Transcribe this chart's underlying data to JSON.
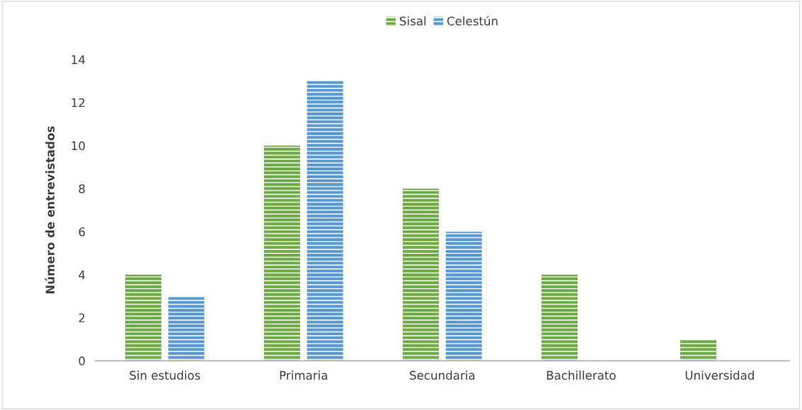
{
  "chart_data": {
    "type": "bar",
    "ylabel": "Número de entrevistados",
    "categories": [
      "Sin estudios",
      "Primaria",
      "Secundaria",
      "Bachillerato",
      "Universidad"
    ],
    "series": [
      {
        "name": "Sisal",
        "color": "#70ad47",
        "values": [
          4,
          10,
          8,
          4,
          1
        ]
      },
      {
        "name": "Celestún",
        "color": "#5b9bd5",
        "values": [
          3,
          13,
          6,
          0,
          0
        ]
      }
    ],
    "ylim": [
      0,
      14
    ],
    "yticks": [
      0,
      2,
      4,
      6,
      8,
      10,
      12,
      14
    ],
    "legend": "top",
    "grid": false
  }
}
